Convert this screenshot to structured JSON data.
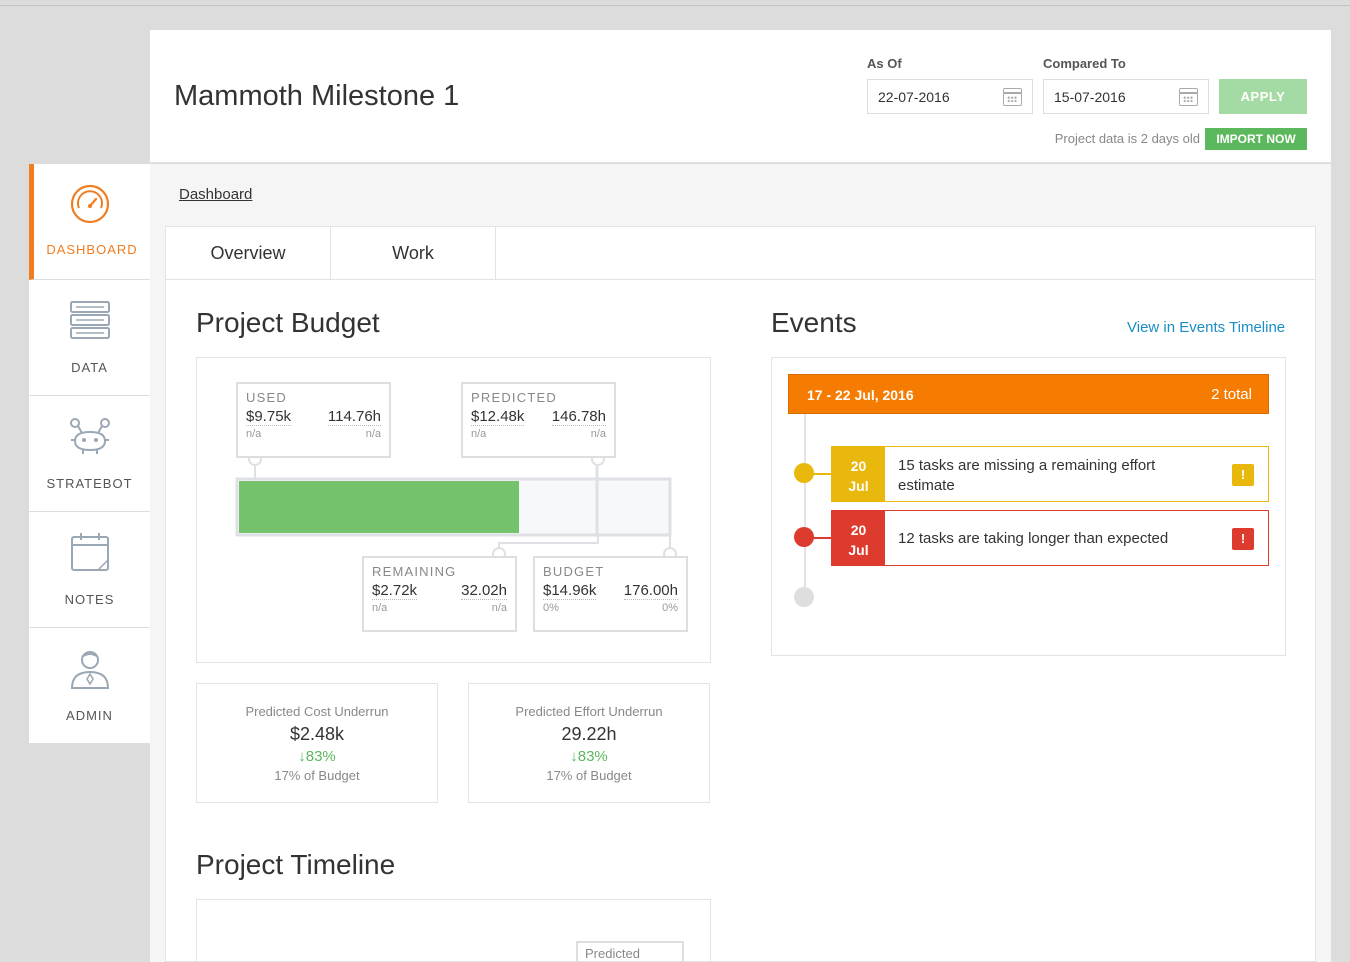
{
  "header": {
    "title": "Mammoth Milestone 1",
    "as_of_label": "As Of",
    "as_of_value": "22-07-2016",
    "compared_label": "Compared To",
    "compared_value": "15-07-2016",
    "apply_label": "APPLY",
    "data_age": "Project data is 2 days old",
    "import_label": "IMPORT NOW"
  },
  "sidebar": {
    "items": [
      {
        "label": "DASHBOARD",
        "icon": "gauge-icon",
        "active": true
      },
      {
        "label": "DATA",
        "icon": "server-icon"
      },
      {
        "label": "STRATEBOT",
        "icon": "robot-icon"
      },
      {
        "label": "NOTES",
        "icon": "calendar-note-icon"
      },
      {
        "label": "ADMIN",
        "icon": "user-icon"
      }
    ]
  },
  "breadcrumb": "Dashboard",
  "tabs": [
    {
      "label": "Overview",
      "active": true
    },
    {
      "label": "Work"
    }
  ],
  "budget": {
    "title": "Project Budget",
    "used": {
      "label": "USED",
      "cost": "$9.75k",
      "effort": "114.76h",
      "cost_sub": "n/a",
      "effort_sub": "n/a"
    },
    "predicted": {
      "label": "PREDICTED",
      "cost": "$12.48k",
      "effort": "146.78h",
      "cost_sub": "n/a",
      "effort_sub": "n/a"
    },
    "remaining": {
      "label": "REMAINING",
      "cost": "$2.72k",
      "effort": "32.02h",
      "cost_sub": "n/a",
      "effort_sub": "n/a"
    },
    "budget": {
      "label": "BUDGET",
      "cost": "$14.96k",
      "effort": "176.00h",
      "cost_sub": "0%",
      "effort_sub": "0%"
    },
    "used_fraction": 0.652,
    "predicted_fraction": 0.834
  },
  "stats": [
    {
      "title": "Predicted Cost Underrun",
      "value": "$2.48k",
      "change": "↓83%",
      "note": "17% of Budget"
    },
    {
      "title": "Predicted Effort Underrun",
      "value": "29.22h",
      "change": "↓83%",
      "note": "17% of Budget"
    }
  ],
  "events": {
    "title": "Events",
    "link": "View in Events Timeline",
    "range": "17 - 22 Jul, 2016",
    "total": "2 total",
    "items": [
      {
        "day": "20",
        "month": "Jul",
        "text": "15 tasks are missing a remaining effort estimate",
        "flag": "!",
        "color": "#e8b80c"
      },
      {
        "day": "20",
        "month": "Jul",
        "text": "12 tasks are taking longer than expected",
        "flag": "!",
        "color": "#dd3b2e"
      }
    ]
  },
  "timeline": {
    "title": "Project Timeline",
    "predicted_label": "Predicted"
  },
  "colors": {
    "accent": "#f07d20",
    "used_bar": "#74c36c",
    "apply_disabled": "#a4dba4",
    "import": "#5cb85c",
    "link": "#1a8ec4",
    "events_header": "#f57c00"
  }
}
